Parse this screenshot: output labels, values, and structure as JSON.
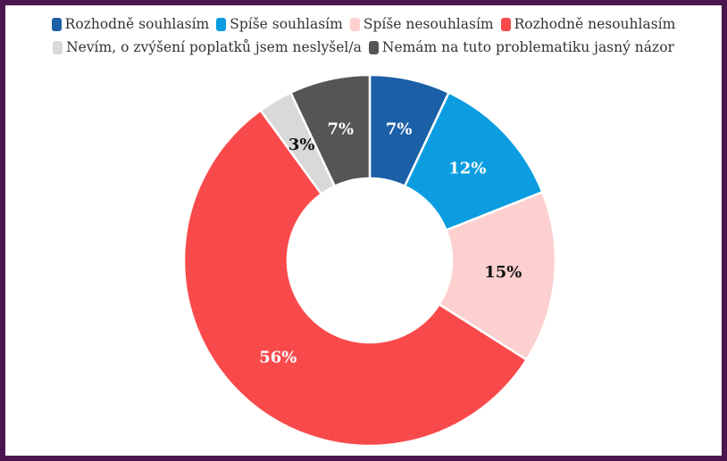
{
  "chart_data": {
    "type": "pie",
    "categories": [
      "Rozhodně souhlasím",
      "Spíše souhlasím",
      "Spíše nesouhlasím",
      "Rozhodně nesouhlasím",
      "Nevím, o zvýšení poplatků jsem neslyšel/a",
      "Nemám na tuto problematiku jasný názor"
    ],
    "values": [
      7,
      12,
      15,
      56,
      3,
      7
    ],
    "value_labels": [
      "7%",
      "12%",
      "15%",
      "56%",
      "3%",
      "7%"
    ],
    "colors": [
      "#1b5fa6",
      "#0b9de0",
      "#fdd0d0",
      "#f94a4b",
      "#d9d9d9",
      "#555555"
    ],
    "donut": true
  }
}
